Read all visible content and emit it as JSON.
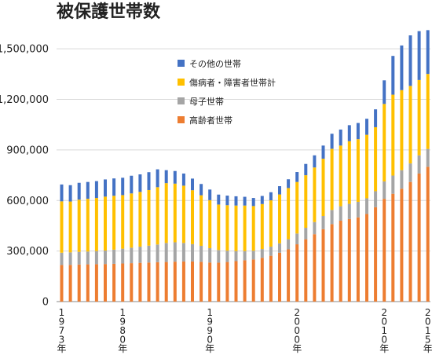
{
  "chart_data": {
    "type": "bar",
    "stacked": true,
    "title": "被保護世帯数",
    "xlabel": "",
    "ylabel": "",
    "ylim": [
      0,
      1650000
    ],
    "y_ticks": [
      "0",
      "300,000",
      "600,000",
      "900,000",
      "1,200,000",
      "1,500,000"
    ],
    "y_tick_values": [
      0,
      300000,
      600000,
      900000,
      1200000,
      1500000
    ],
    "x_tick_labels": [
      {
        "year": 1973,
        "chars": [
          "1",
          "9",
          "7",
          "3",
          "年"
        ]
      },
      {
        "year": 1980,
        "chars": [
          "1",
          "9",
          "8",
          "0",
          "年"
        ]
      },
      {
        "year": 1990,
        "chars": [
          "1",
          "9",
          "9",
          "0",
          "年"
        ]
      },
      {
        "year": 2000,
        "chars": [
          "2",
          "0",
          "0",
          "0",
          "年"
        ]
      },
      {
        "year": 2010,
        "chars": [
          "2",
          "0",
          "1",
          "0",
          "年"
        ]
      },
      {
        "year": 2015,
        "chars": [
          "2",
          "0",
          "1",
          "5",
          "年"
        ]
      }
    ],
    "grid": true,
    "legend_position": "top-left-inside",
    "categories": [
      1973,
      1974,
      1975,
      1976,
      1977,
      1978,
      1979,
      1980,
      1981,
      1982,
      1983,
      1984,
      1985,
      1986,
      1987,
      1988,
      1989,
      1990,
      1991,
      1992,
      1993,
      1994,
      1995,
      1996,
      1997,
      1998,
      1999,
      2000,
      2001,
      2002,
      2003,
      2004,
      2005,
      2006,
      2007,
      2008,
      2009,
      2010,
      2011,
      2012,
      2013,
      2014,
      2015
    ],
    "series": [
      {
        "name": "高齢者世帯",
        "color": "#ED7D31",
        "values": [
          217000,
          218000,
          220000,
          221000,
          222000,
          223000,
          224000,
          226000,
          228000,
          230000,
          232000,
          234000,
          235000,
          237000,
          238000,
          238000,
          236000,
          232000,
          231000,
          235000,
          240000,
          245000,
          250000,
          260000,
          272000,
          290000,
          310000,
          340000,
          370000,
          400000,
          430000,
          460000,
          480000,
          490000,
          500000,
          520000,
          560000,
          610000,
          640000,
          670000,
          710000,
          760000,
          800000
        ]
      },
      {
        "name": "母子世帯",
        "color": "#A5A5A5",
        "values": [
          73000,
          74000,
          75000,
          76000,
          78000,
          80000,
          84000,
          88000,
          92000,
          96000,
          100000,
          105000,
          113000,
          115000,
          110000,
          103000,
          95000,
          85000,
          75000,
          67000,
          60000,
          55000,
          52000,
          52000,
          54000,
          56000,
          60000,
          64000,
          68000,
          72000,
          78000,
          84000,
          86000,
          90000,
          92000,
          93000,
          95000,
          103000,
          108000,
          110000,
          110000,
          108000,
          106000
        ]
      },
      {
        "name": "傷病者・障害者世帯計",
        "color": "#FFC000",
        "values": [
          305000,
          302000,
          310000,
          313000,
          315000,
          320000,
          320000,
          318000,
          322000,
          325000,
          330000,
          340000,
          355000,
          348000,
          340000,
          320000,
          300000,
          285000,
          270000,
          270000,
          270000,
          270000,
          265000,
          267000,
          275000,
          290000,
          304000,
          306000,
          312000,
          324000,
          340000,
          363000,
          360000,
          372000,
          372000,
          377000,
          380000,
          460000,
          480000,
          475000,
          460000,
          447000,
          445000
        ]
      },
      {
        "name": "その他の世帯",
        "color": "#4472C4",
        "values": [
          100000,
          97000,
          100000,
          100000,
          100000,
          102000,
          103000,
          103000,
          105000,
          104000,
          106000,
          106000,
          77000,
          75000,
          72000,
          69000,
          67000,
          63000,
          59000,
          57000,
          55000,
          52000,
          48000,
          48000,
          48000,
          49000,
          52000,
          59000,
          67000,
          72000,
          78000,
          89000,
          95000,
          95000,
          96000,
          95000,
          106000,
          140000,
          230000,
          265000,
          300000,
          290000,
          260000
        ]
      }
    ]
  }
}
